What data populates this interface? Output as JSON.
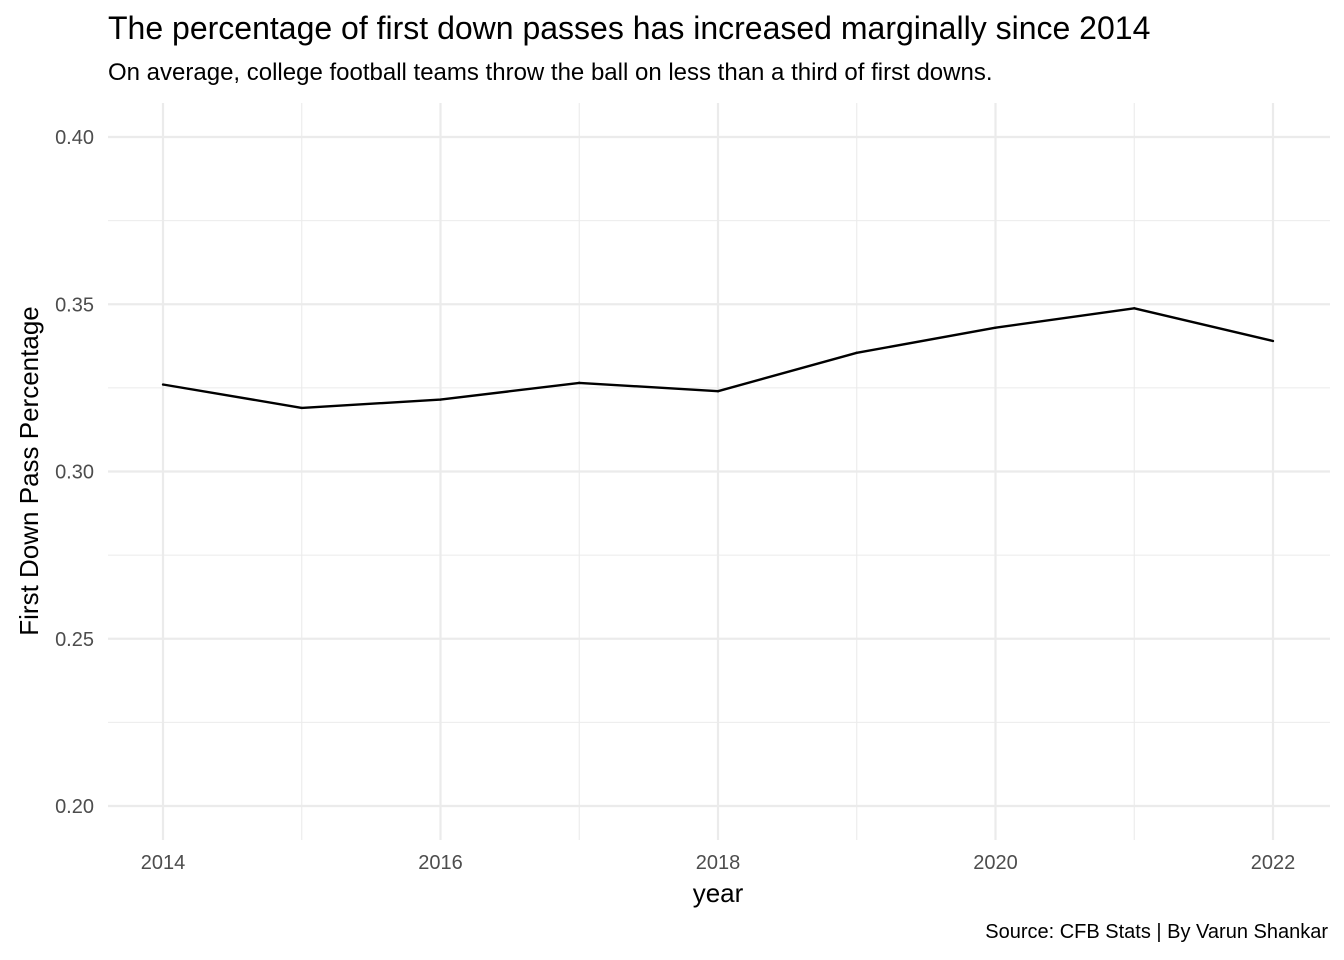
{
  "chart_data": {
    "type": "line",
    "title": "The percentage of first down passes has increased marginally since 2014",
    "subtitle": "On average, college football teams throw the ball on less than a third of first downs.",
    "caption": "Source: CFB Stats | By Varun Shankar",
    "xlabel": "year",
    "ylabel": "First Down Pass Percentage",
    "x": [
      2014,
      2015,
      2016,
      2017,
      2018,
      2019,
      2020,
      2021,
      2022
    ],
    "series": [
      {
        "values": [
          0.326,
          0.319,
          0.3215,
          0.3265,
          0.324,
          0.3355,
          0.343,
          0.3488,
          0.339
        ]
      }
    ],
    "xlim": [
      2014,
      2022
    ],
    "ylim": [
      0.2,
      0.4
    ],
    "x_ticks": [
      2014,
      2016,
      2018,
      2020,
      2022
    ],
    "x_tick_labels": [
      "2014",
      "2016",
      "2018",
      "2020",
      "2022"
    ],
    "y_ticks": [
      0.2,
      0.25,
      0.3,
      0.35,
      0.4
    ],
    "y_tick_labels": [
      "0.20",
      "0.25",
      "0.30",
      "0.35",
      "0.40"
    ],
    "grid": true,
    "line_color": "#000000",
    "grid_color": "#ebebeb"
  }
}
